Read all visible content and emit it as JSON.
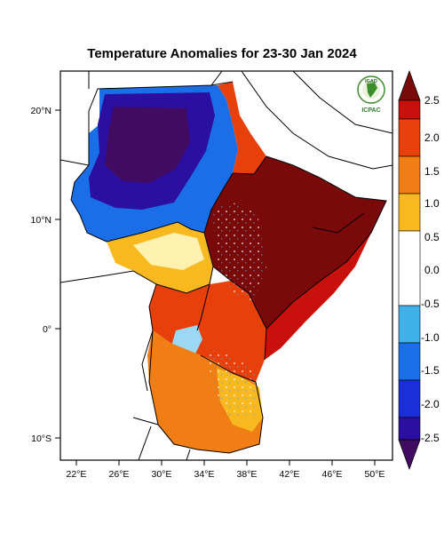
{
  "title": "Temperature Anomalies for 23-30 Jan 2024",
  "map": {
    "lon_range": [
      21,
      52
    ],
    "lat_range": [
      -12,
      23
    ],
    "lon_ticks": [
      "22°E",
      "26°E",
      "30°E",
      "34°E",
      "38°E",
      "42°E",
      "46°E",
      "50°E"
    ],
    "lat_ticks": [
      "20°N",
      "10°N",
      "0°",
      "10°S"
    ]
  },
  "logo": {
    "top_text": "IGAD",
    "bottom_text": "ICPAC"
  },
  "colorbar": {
    "labels": [
      "2.5",
      "2.0",
      "1.5",
      "1.0",
      "0.5",
      "0.0",
      "-0.5",
      "-1.0",
      "-1.5",
      "-2.0",
      "-2.5"
    ],
    "colors": [
      "#7a0a0a",
      "#c8100c",
      "#e8400a",
      "#f07e14",
      "#f8b820",
      "#ffffff",
      "#3fb0e8",
      "#1a6ee8",
      "#1a2fd8",
      "#2b0fa0",
      "#400b60"
    ]
  }
}
